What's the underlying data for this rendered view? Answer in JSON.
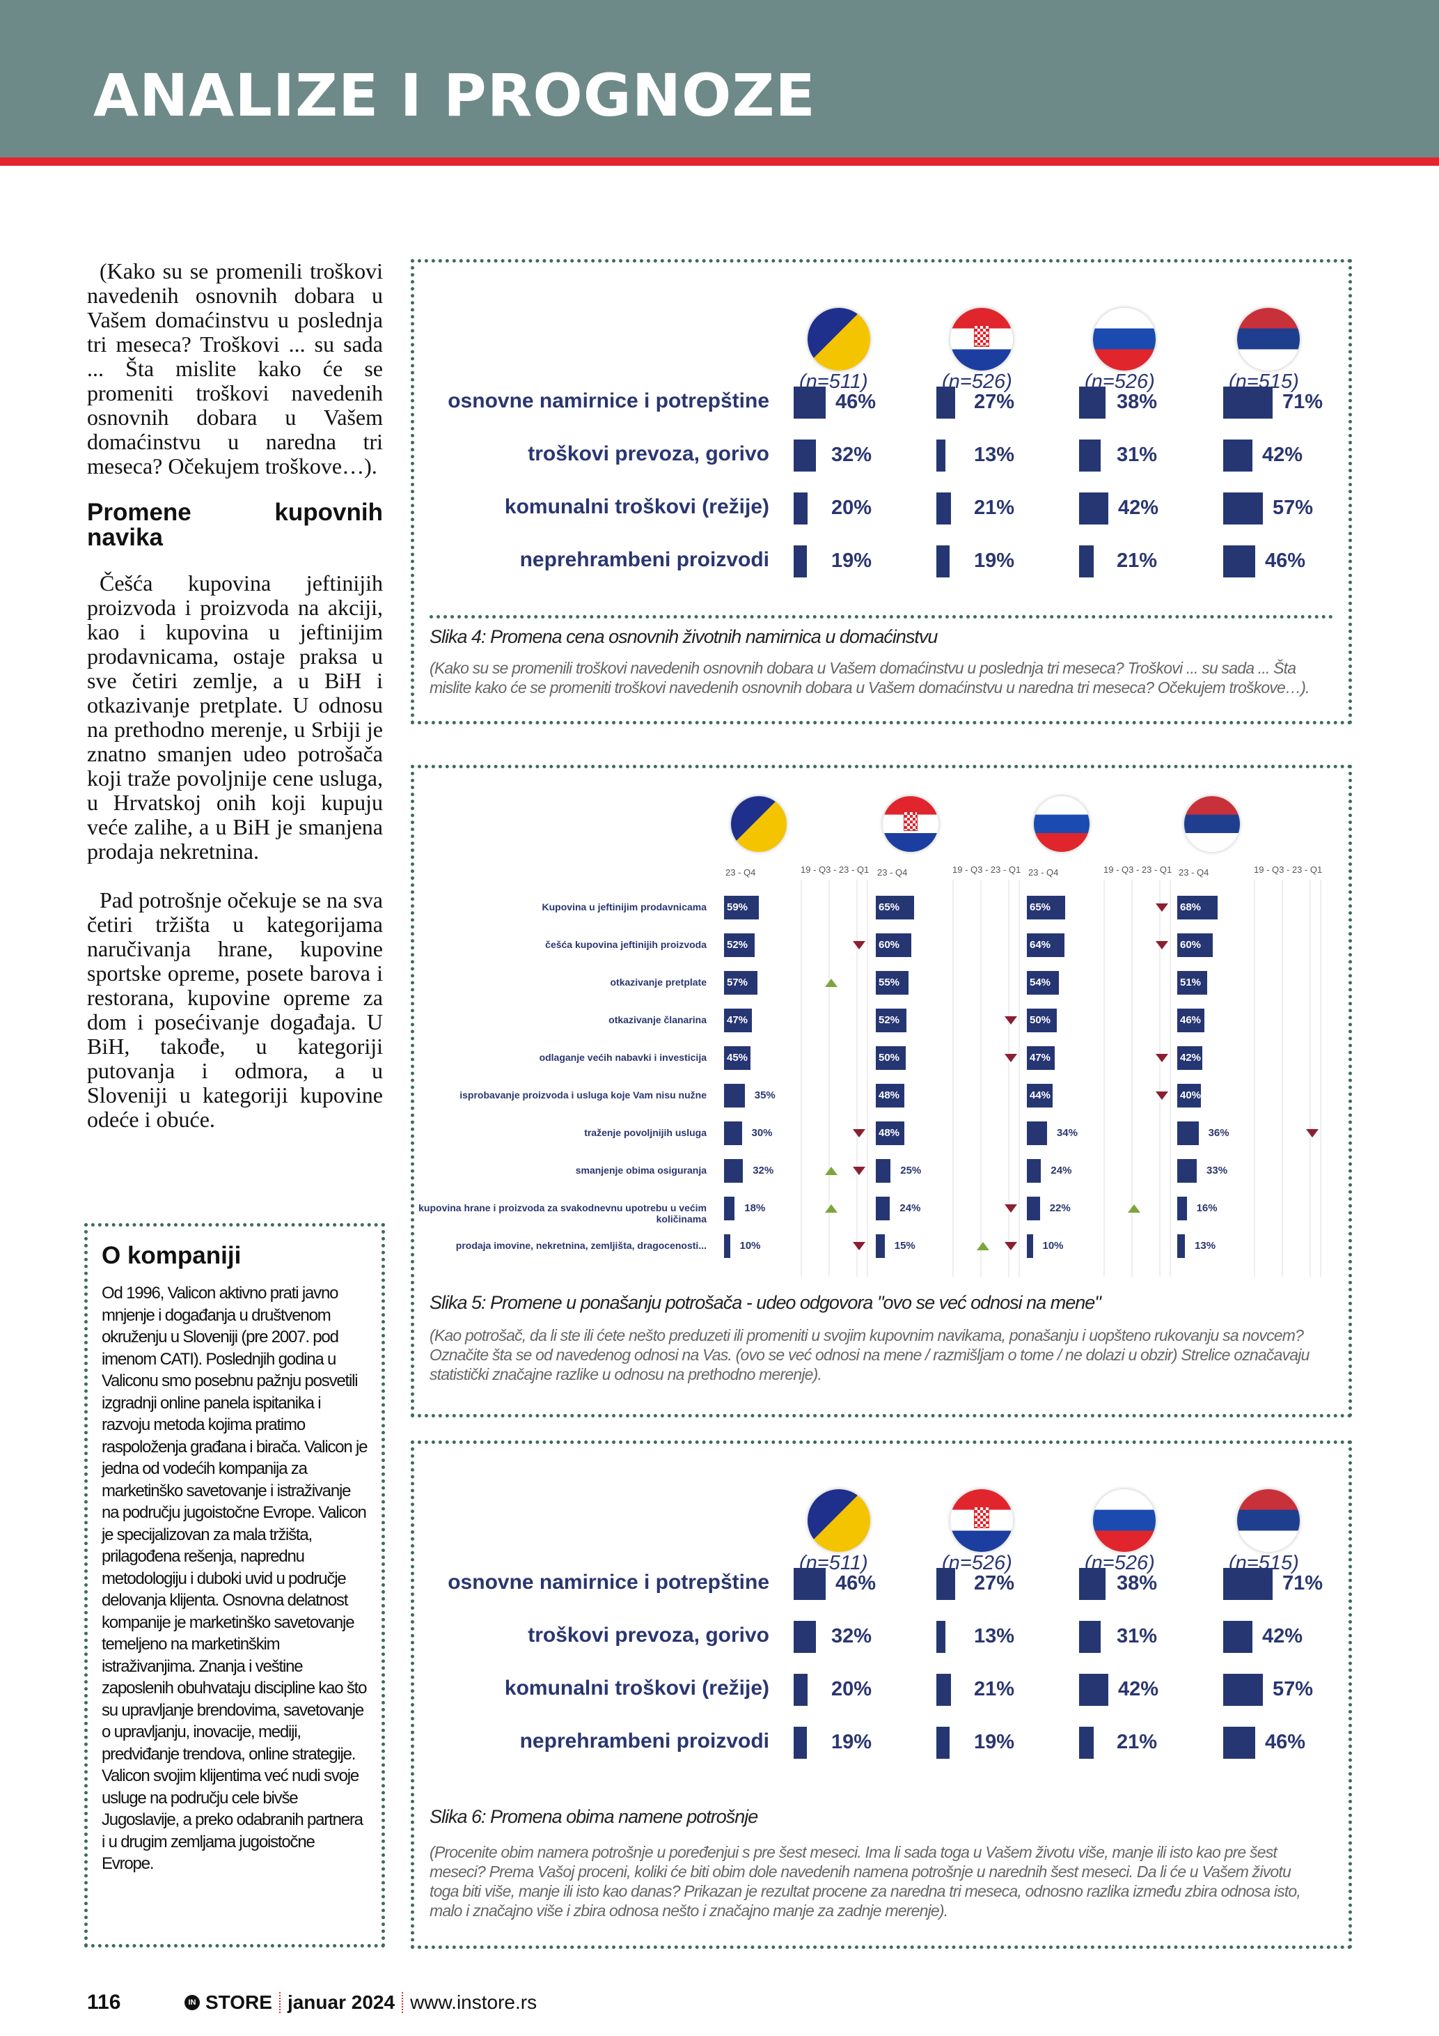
{
  "header": {
    "title": "ANALIZE I PROGNOZE",
    "color": "#6d8a89",
    "accent": "#e3262e"
  },
  "left_column": {
    "intro": "(Kako su se promenili troškovi navedenih osnovnih dobara u Vašem domaćinstvu u poslednja tri meseca? Troškovi ... su sada ... Šta mislite kako će se promeniti troškovi navedenih osnovnih dobara u Vašem domaćinstvu u naredna tri meseca? Očekujem troškove…).",
    "heading": "Promene kupovnih navika",
    "p1": "Češća kupovina jeftinijih proizvoda i proizvoda na akciji, kao i kupovina u jeftinijim prodavnicama, ostaje praksa u sve četiri zemlje, a u BiH i otkazivanje pretplate. U odnosu na prethodno merenje, u Srbiji je znatno smanjen udeo potrošača koji traže povoljnije cene usluga, u Hrvatskoj onih koji kupuju veće zalihe, a u BiH je smanjena prodaja nekretnina.",
    "p2": "Pad potrošnje očekuje se na sva četiri tržišta u kategorijama naručivanja hrane, kupovine sportske opreme, posete barova i restorana, kupovine opreme za dom i posećivanje događaja. U BiH, takođe, u kategoriji putovanja i odmora, a u Sloveniji u kategoriji kupovine odeće i obuće."
  },
  "about": {
    "title": "O kompaniji",
    "text": "Od 1996, Valicon aktivno prati javno mnjenje i događanja u društvenom okruženju u Sloveniji (pre 2007. pod imenom CATI). Poslednjih godina u Valiconu smo posebnu pažnju posvetili izgradnji online panela ispitanika i razvoju metoda kojima pratimo raspoloženja građana i birača. Valicon je jedna od vodećih kompanija za marketinško savetovanje i istraživanje na području jugoistočne Evrope. Valicon je specijalizovan za mala tržišta, prilagođena rešenja, naprednu metodologiju i duboki uvid u područje delovanja klijenta. Osnovna delatnost kompanije je marketinško savetovanje temeljeno na marketinškim istraživanjima. Znanja i veštine zaposlenih obuhvataju discipline kao što su upravljanje brendovima, savetovanje o upravljanju, inovacije, mediji, predviđanje trendova, online strategije. Valicon svojim klijentima već nudi svoje usluge na području cele bivše Jugoslavije, a preko odabranih partnera i u drugim zemljama jugoistočne Evrope."
  },
  "countries": [
    {
      "code": "BA",
      "icon": "flag-bosnia-icon",
      "n": "(n=511)"
    },
    {
      "code": "HR",
      "icon": "flag-croatia-icon",
      "n": "(n=526)"
    },
    {
      "code": "SI",
      "icon": "flag-slovenia-icon",
      "n": "(n=526)"
    },
    {
      "code": "RS",
      "icon": "flag-serbia-icon",
      "n": "(n=515)"
    }
  ],
  "figures": {
    "fig4": {
      "caption": "Slika 4: Promena cena osnovnih životnih namirnica u domaćinstvu",
      "note": "(Kako su se promenili troškovi navedenih osnovnih dobara u Vašem domaćinstvu u poslednja tri meseca? Troškovi ... su sada ... Šta mislite kako će se promeniti troškovi navedenih osnovnih dobara u Vašem domaćinstvu u naredna tri meseca? Očekujem troškove…)."
    },
    "fig5": {
      "caption": "Slika 5: Promene u ponašanju potrošača - udeo odgovora \"ovo se već odnosi na mene\"",
      "note": "(Kao potrošač, da li ste ili ćete nešto preduzeti ili promeniti u svojim kupovnim navikama, ponašanju i uopšteno rukovanju sa novcem? Označite šta se od navedenog odnosi na Vas. (ovo se već odnosi na mene / razmišljam o tome / ne dolazi u obzir) Strelice označavaju statistički značajne razlike u odnosu na prethodno merenje)."
    },
    "fig6": {
      "caption": "Slika 6: Promena obima namene potrošnje",
      "note": "(Procenite obim namera potrošnje u poređenjui s pre šest meseci. Ima li sada toga u Vašem životu više, manje ili isto kao pre šest meseci? Prema Vašoj proceni, koliki će biti obim dole navedenih namena potrošnje u narednih šest meseci. Da li će u Vašem životu toga biti više, manje ili isto kao danas? Prikazan je rezultat procene za naredna tri meseca, odnosno razlika između zbira odnosa isto, malo i značajno više i zbira odnosa nešto i značajno manje za zadnje merenje)."
    }
  },
  "chart_data": [
    {
      "type": "bar",
      "id": "fig4",
      "categories": [
        "osnovne namirnice i potrepštine",
        "troškovi prevoza, gorivo",
        "komunalni troškovi (režije)",
        "neprehrambeni proizvodi"
      ],
      "series": [
        {
          "name": "BA",
          "values": [
            46,
            32,
            20,
            19
          ]
        },
        {
          "name": "HR",
          "values": [
            27,
            13,
            21,
            19
          ]
        },
        {
          "name": "SI",
          "values": [
            38,
            31,
            42,
            21
          ]
        },
        {
          "name": "RS",
          "values": [
            71,
            42,
            57,
            46
          ]
        }
      ],
      "unit": "%"
    },
    {
      "type": "bar",
      "id": "fig5",
      "period_label": "23 - Q4",
      "change_label": "19 - Q3 - 23 - Q1",
      "categories": [
        "Kupovina u jeftinijim prodavnicama",
        "češća kupovina jeftinijih proizvoda",
        "otkazivanje pretplate",
        "otkazivanje članarina",
        "odlaganje većih nabavki i investicija",
        "isprobavanje proizvoda i usluga koje Vam nisu nužne",
        "traženje povoljnijih usluga",
        "smanjenje obima osiguranja",
        "kupovina hrane i proizvoda za svakodnevnu upotrebu u većim količinama",
        "prodaja imovine, nekretnina, zemljišta, dragocenosti..."
      ],
      "series": [
        {
          "name": "BA",
          "values": [
            59,
            52,
            57,
            47,
            45,
            35,
            30,
            32,
            18,
            10
          ]
        },
        {
          "name": "HR",
          "values": [
            65,
            60,
            55,
            52,
            50,
            48,
            48,
            25,
            24,
            15
          ]
        },
        {
          "name": "SI",
          "values": [
            65,
            64,
            54,
            50,
            47,
            44,
            34,
            24,
            22,
            10
          ]
        },
        {
          "name": "RS",
          "values": [
            68,
            60,
            51,
            46,
            42,
            40,
            36,
            33,
            16,
            13
          ]
        }
      ],
      "arrows": [
        {
          "country": "BA",
          "row": 2,
          "dir": "down"
        },
        {
          "country": "BA",
          "row": 3,
          "dir": "up"
        },
        {
          "country": "BA",
          "row": 7,
          "dir": "down"
        },
        {
          "country": "BA",
          "row": 8,
          "dir": "up"
        },
        {
          "country": "BA",
          "row": 8,
          "dir": "down"
        },
        {
          "country": "BA",
          "row": 9,
          "dir": "up"
        },
        {
          "country": "BA",
          "row": 10,
          "dir": "down"
        },
        {
          "country": "HR",
          "row": 4,
          "dir": "down"
        },
        {
          "country": "HR",
          "row": 5,
          "dir": "down"
        },
        {
          "country": "HR",
          "row": 9,
          "dir": "down"
        },
        {
          "country": "HR",
          "row": 10,
          "dir": "down"
        },
        {
          "country": "HR",
          "row": 10,
          "dir": "up"
        },
        {
          "country": "SI",
          "row": 1,
          "dir": "down"
        },
        {
          "country": "SI",
          "row": 2,
          "dir": "down"
        },
        {
          "country": "SI",
          "row": 5,
          "dir": "down"
        },
        {
          "country": "SI",
          "row": 6,
          "dir": "down"
        },
        {
          "country": "SI",
          "row": 9,
          "dir": "up"
        },
        {
          "country": "RS",
          "row": 7,
          "dir": "down"
        }
      ],
      "unit": "%"
    },
    {
      "type": "bar",
      "id": "fig6",
      "categories": [
        "osnovne namirnice i potrepštine",
        "troškovi prevoza, gorivo",
        "komunalni troškovi (režije)",
        "neprehrambeni proizvodi"
      ],
      "series": [
        {
          "name": "BA",
          "values": [
            46,
            32,
            20,
            19
          ]
        },
        {
          "name": "HR",
          "values": [
            27,
            13,
            21,
            19
          ]
        },
        {
          "name": "SI",
          "values": [
            38,
            31,
            42,
            21
          ]
        },
        {
          "name": "RS",
          "values": [
            71,
            42,
            57,
            46
          ]
        }
      ],
      "unit": "%"
    }
  ],
  "footer": {
    "page": "116",
    "brand": "STORE",
    "brand_icon": "in-logo-icon",
    "issue": "januar 2024",
    "url": "www.instore.rs"
  }
}
